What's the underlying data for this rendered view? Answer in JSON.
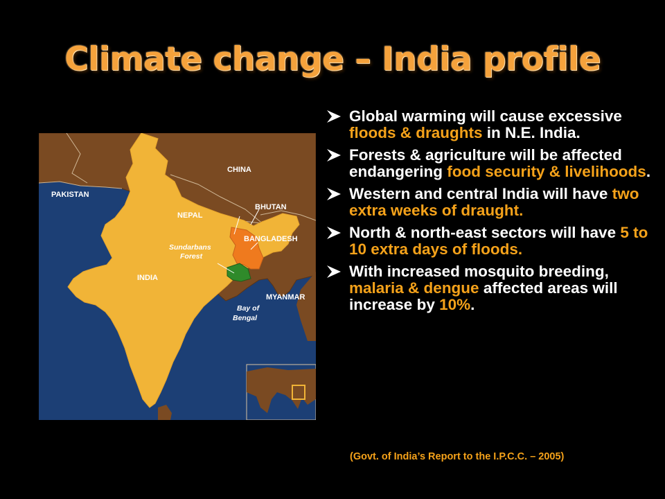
{
  "title": "Climate change – India profile",
  "map": {
    "labels": {
      "china": "CHINA",
      "pakistan": "PAKISTAN",
      "nepal": "NEPAL",
      "bhutan": "BHUTAN",
      "bangladesh": "BANGLADESH",
      "sundarbans_1": "Sundarbans",
      "sundarbans_2": "Forest",
      "india": "INDIA",
      "myanmar": "MYANMAR",
      "bay_1": "Bay of",
      "bay_2": "Bengal"
    },
    "colors": {
      "sea": "#1c3f75",
      "land": "#7a4a22",
      "india": "#f1b437",
      "bangladesh": "#ef7a1e",
      "forest": "#2f8a2a"
    }
  },
  "bullets": [
    {
      "parts": [
        {
          "text": "Global warming will cause excessive ",
          "highlight": false
        },
        {
          "text": "floods & draughts",
          "highlight": true
        },
        {
          "text": " in N.E. India.",
          "highlight": false
        }
      ]
    },
    {
      "parts": [
        {
          "text": "Forests & agriculture will be affected endangering ",
          "highlight": false
        },
        {
          "text": "food security & livelihoods",
          "highlight": true
        },
        {
          "text": ".",
          "highlight": false
        }
      ]
    },
    {
      "parts": [
        {
          "text": "Western and central India will have ",
          "highlight": false
        },
        {
          "text": "two extra weeks of draught.",
          "highlight": true
        }
      ]
    },
    {
      "parts": [
        {
          "text": "North & north-east sectors will have ",
          "highlight": false
        },
        {
          "text": "5 to 10 extra days of floods.",
          "highlight": true
        }
      ]
    },
    {
      "parts": [
        {
          "text": "With increased mosquito breeding, ",
          "highlight": false
        },
        {
          "text": "malaria & dengue",
          "highlight": true
        },
        {
          "text": " affected areas will increase by ",
          "highlight": false
        },
        {
          "text": "10%",
          "highlight": true
        },
        {
          "text": ".",
          "highlight": false
        }
      ]
    }
  ],
  "source": "(Govt. of India’s Report to the I.P.C.C. – 2005)",
  "colors": {
    "title": "#f5a23c",
    "highlight": "#f5a21a",
    "text": "#ffffff",
    "background": "#000000"
  }
}
